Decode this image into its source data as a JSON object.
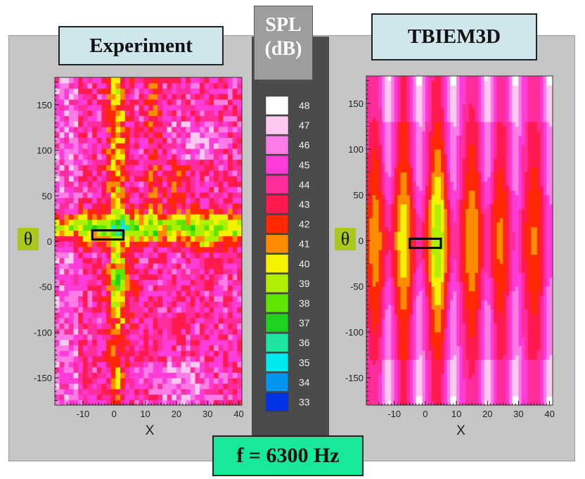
{
  "titles": {
    "left": "Experiment",
    "right": "TBIEM3D",
    "colorbar_line1": "SPL",
    "colorbar_line2": "(dB)",
    "frequency": "f = 6300 Hz",
    "theta_symbol": "θ"
  },
  "chart_data": [
    {
      "type": "heatmap",
      "title": "Experiment",
      "xlabel": "X",
      "ylabel": "θ",
      "xlim": [
        -19,
        41
      ],
      "ylim": [
        -180,
        180
      ],
      "xticks": [
        -10,
        0,
        10,
        20,
        30,
        40
      ],
      "yticks": [
        150,
        100,
        50,
        0,
        -50,
        -100,
        -150
      ],
      "highlight_box": {
        "x": [
          -7,
          3
        ],
        "theta": [
          2,
          12
        ]
      },
      "value_range_db": [
        33,
        48
      ]
    },
    {
      "type": "heatmap",
      "title": "TBIEM3D",
      "xlabel": "X",
      "ylabel": "θ",
      "xlim": [
        -19,
        41
      ],
      "ylim": [
        -180,
        180
      ],
      "xticks": [
        -10,
        0,
        10,
        20,
        30,
        40
      ],
      "yticks": [
        150,
        100,
        50,
        0,
        -50,
        -100,
        -150
      ],
      "highlight_box": {
        "x": [
          -5,
          5
        ],
        "theta": [
          -8,
          2
        ]
      },
      "value_range_db": [
        33,
        48
      ]
    }
  ],
  "colorbar": {
    "levels": [
      48,
      47,
      46,
      45,
      44,
      43,
      42,
      41,
      40,
      39,
      38,
      37,
      36,
      35,
      34,
      33
    ],
    "colors": [
      "#ffffff",
      "#ffc8f0",
      "#ff7ce6",
      "#ff3cd8",
      "#ff2c9c",
      "#ff1a50",
      "#ff2800",
      "#ff8c00",
      "#f4f200",
      "#aef000",
      "#5ee600",
      "#1ed21e",
      "#1ee6a0",
      "#00e8f0",
      "#0096f0",
      "#0032e6"
    ]
  }
}
